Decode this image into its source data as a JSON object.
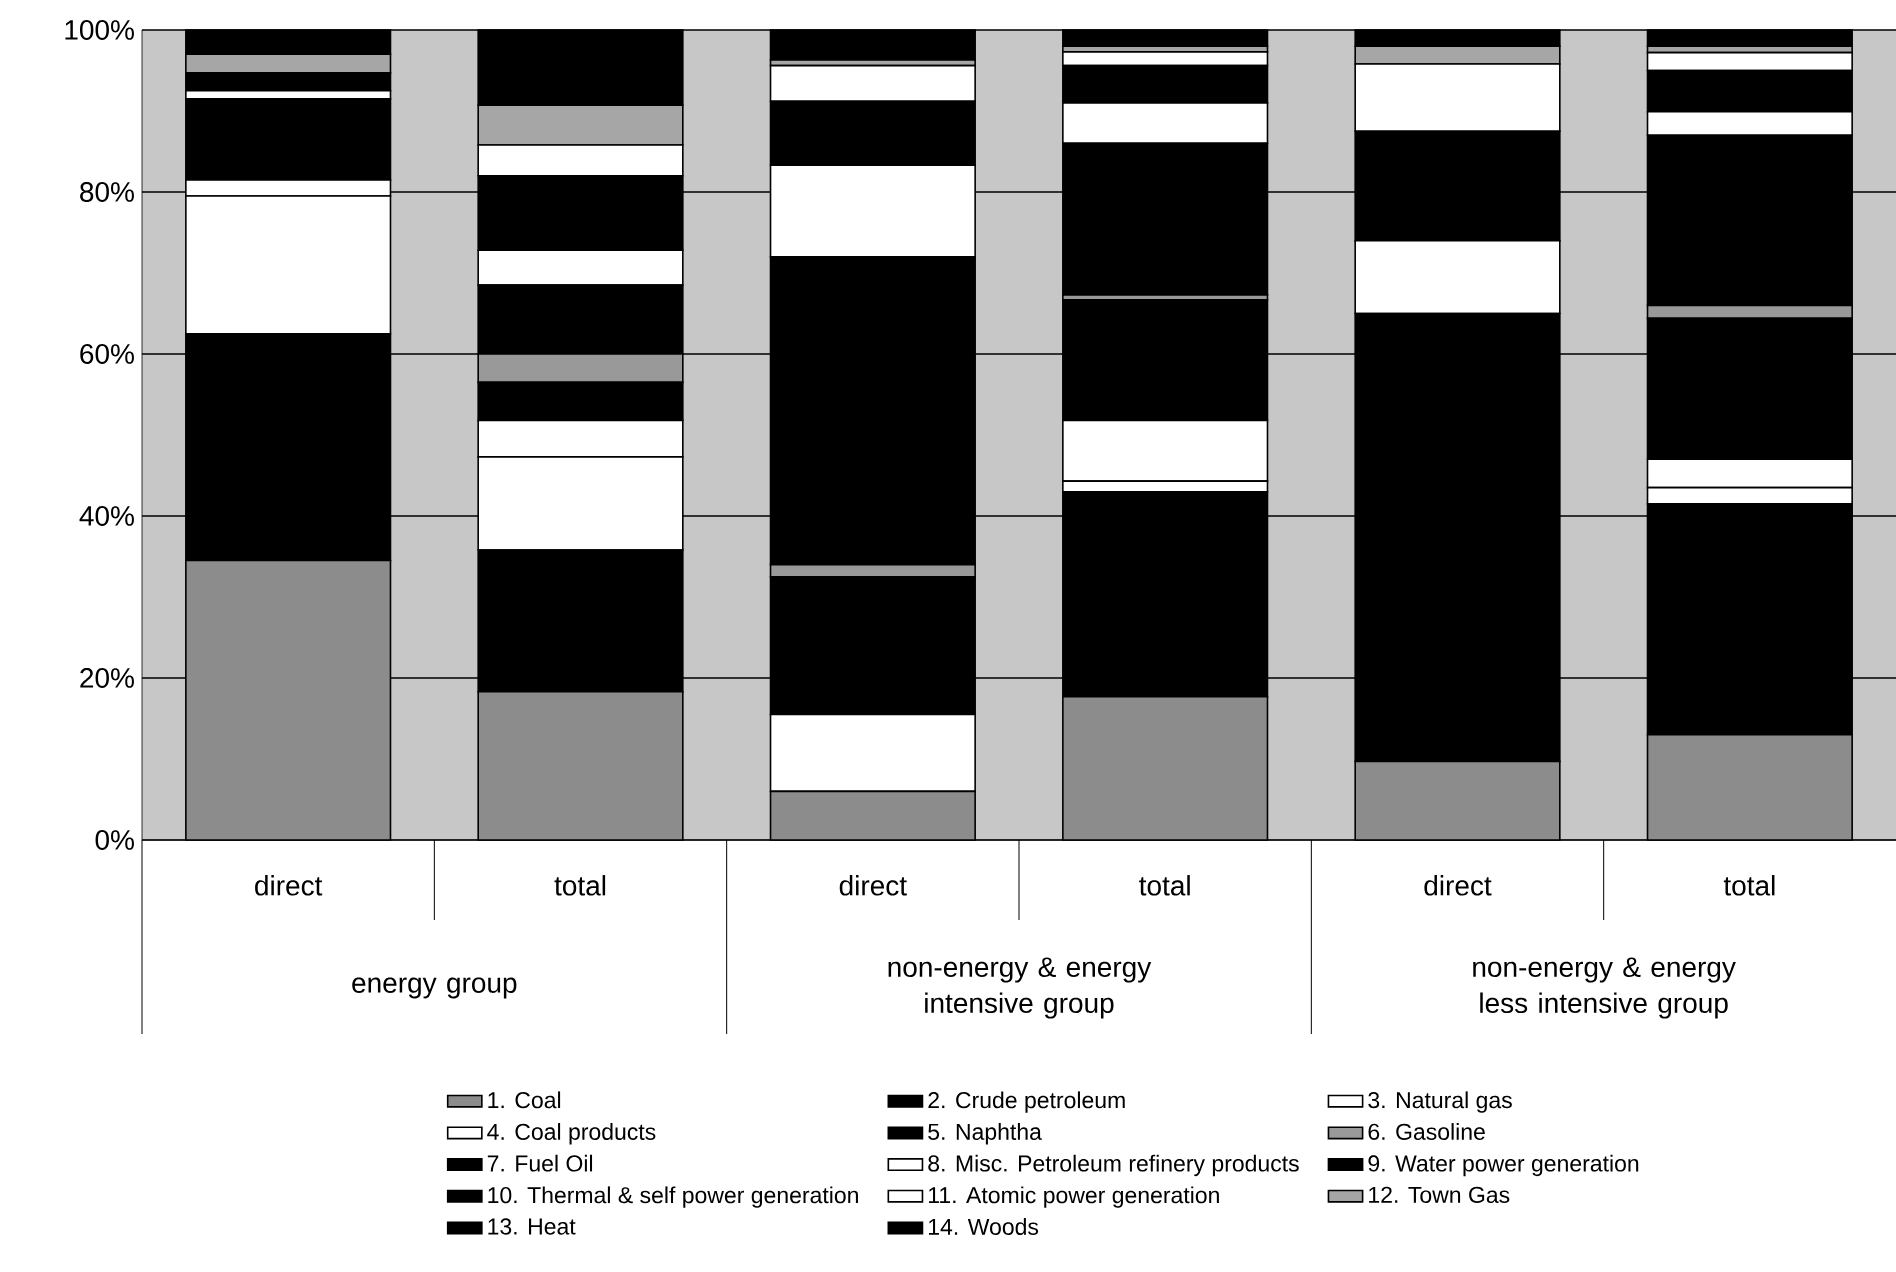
{
  "chart_data": {
    "type": "bar",
    "stacked": true,
    "categories": [
      "direct",
      "total",
      "direct",
      "total",
      "direct",
      "total"
    ],
    "annotations": [
      "energy group",
      "non-energy & energy intensive group",
      "non-energy & energy less intensive group"
    ],
    "ylim": [
      0,
      100
    ],
    "yticks": [
      {
        "value": 0,
        "label": "0%"
      },
      {
        "value": 20,
        "label": "20%"
      },
      {
        "value": 40,
        "label": "40%"
      },
      {
        "value": 60,
        "label": "60%"
      },
      {
        "value": 80,
        "label": "80%"
      },
      {
        "value": 100,
        "label": "100%"
      }
    ],
    "grid": "y",
    "legend": "bottom",
    "series": [
      {
        "name": "1. Coal",
        "color": "#8c8c8c",
        "values": [
          34.5,
          18.3,
          6,
          17.7,
          9.7,
          13
        ]
      },
      {
        "name": "2. Crude petroleum",
        "color": "#000000",
        "values": [
          28,
          17.5,
          0,
          25.3,
          0,
          28.5
        ]
      },
      {
        "name": "3. Natural gas",
        "color": "#ffffff",
        "values": [
          17,
          11.5,
          9.5,
          1.3,
          0,
          2
        ]
      },
      {
        "name": "4. Coal products",
        "color": "#ffffff",
        "values": [
          2,
          4.5,
          0,
          7.5,
          0,
          3.5
        ]
      },
      {
        "name": "5. Naphtha",
        "color": "#000000",
        "values": [
          10,
          4.7,
          17,
          14.9,
          0,
          17.4
        ]
      },
      {
        "name": "6. Gasoline",
        "color": "#999999",
        "values": [
          0,
          3.5,
          1.5,
          0.6,
          0,
          1.6
        ]
      },
      {
        "name": "7. Fuel Oil",
        "color": "#000000",
        "values": [
          0,
          8.5,
          38,
          18.7,
          55.3,
          21
        ]
      },
      {
        "name": "8. Misc. Petroleum refinery products",
        "color": "#ffffff",
        "values": [
          1,
          4.3,
          11.3,
          5,
          9,
          2.9
        ]
      },
      {
        "name": "9. Water power generation",
        "color": "#000000",
        "values": [
          0,
          0,
          0,
          0,
          0,
          0
        ]
      },
      {
        "name": "10. Thermal & self power generation",
        "color": "#000000",
        "values": [
          2.2,
          9.2,
          7.9,
          4.6,
          13.5,
          5.1
        ]
      },
      {
        "name": "11. Atomic power generation",
        "color": "#ffffff",
        "values": [
          0,
          3.8,
          4.4,
          1.7,
          8.3,
          2.2
        ]
      },
      {
        "name": "12. Town Gas",
        "color": "#a6a6a6",
        "values": [
          2.3,
          4.9,
          0.7,
          0.7,
          2.2,
          0.8
        ]
      },
      {
        "name": "13. Heat",
        "color": "#000000",
        "values": [
          3,
          9.3,
          3.7,
          2,
          2,
          2
        ]
      },
      {
        "name": "14. Woods",
        "color": "#000000",
        "values": [
          0,
          0,
          0,
          0,
          0,
          0
        ]
      }
    ]
  }
}
